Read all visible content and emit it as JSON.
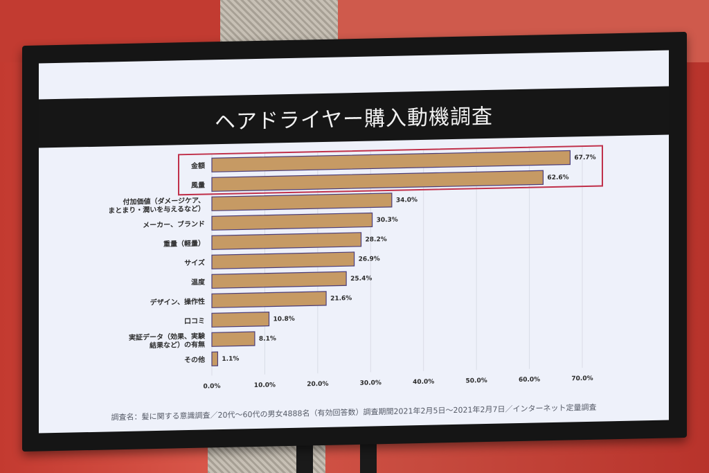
{
  "chart_data": {
    "type": "bar",
    "orientation": "horizontal",
    "title": "ヘアドライヤー購入動機調査",
    "categories": [
      [
        "金額"
      ],
      [
        "風量"
      ],
      [
        "付加価値（ダメージケア、",
        "まとまり・潤いを与えるなど）"
      ],
      [
        "メーカー、ブランド"
      ],
      [
        "重量（軽量）"
      ],
      [
        "サイズ"
      ],
      [
        "温度"
      ],
      [
        "デザイン、操作性"
      ],
      [
        "口コミ"
      ],
      [
        "実証データ（効果、実験",
        "結果など）の有無"
      ],
      [
        "その他"
      ]
    ],
    "values": [
      67.7,
      62.6,
      34.0,
      30.3,
      28.2,
      26.9,
      25.4,
      21.6,
      10.8,
      8.1,
      1.1
    ],
    "value_labels": [
      "67.7%",
      "62.6%",
      "34.0%",
      "30.3%",
      "28.2%",
      "26.9%",
      "25.4%",
      "21.6%",
      "10.8%",
      "8.1%",
      "1.1%"
    ],
    "xlim": [
      0,
      70
    ],
    "x_ticks": [
      "0.0%",
      "10.0%",
      "20.0%",
      "30.0%",
      "40.0%",
      "50.0%",
      "60.0%",
      "70.0%"
    ],
    "highlighted_categories": [
      0,
      1
    ],
    "grid": true,
    "colors": {
      "bar": "#c69a64",
      "bar_border": "#4a3d7a",
      "highlight_box": "#c0304a"
    }
  },
  "footnote": "調査名：髪に関する意識調査／20代〜60代の男女4888名（有効回答数）調査期間2021年2月5日〜2021年2月7日／インターネット定量調査"
}
